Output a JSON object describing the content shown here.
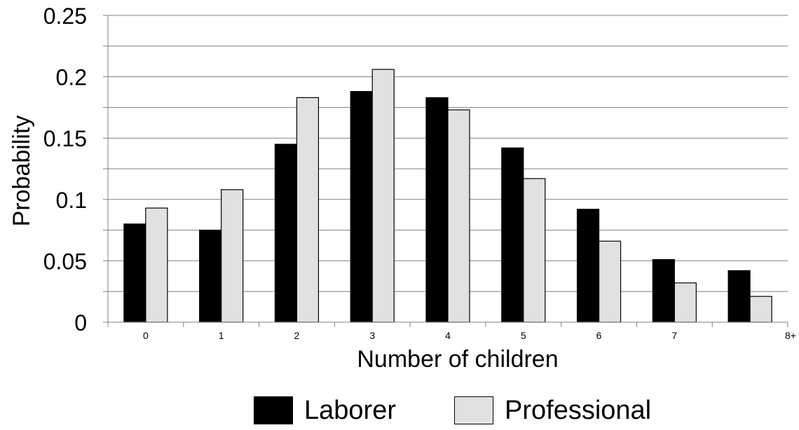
{
  "chart_data": {
    "type": "bar",
    "title": "",
    "xlabel": "Number of children",
    "ylabel": "Probability",
    "categories": [
      "0",
      "1",
      "2",
      "3",
      "4",
      "5",
      "6",
      "7",
      "8+"
    ],
    "y_ticks": [
      "0",
      "0.05",
      "0.1",
      "0.15",
      "0.2",
      "0.25"
    ],
    "ylim": [
      0,
      0.25
    ],
    "grid": true,
    "legend_position": "bottom",
    "series": [
      {
        "name": "Laborer",
        "color": "#000000",
        "values": [
          0.08,
          0.075,
          0.145,
          0.188,
          0.183,
          0.142,
          0.092,
          0.051,
          0.042
        ]
      },
      {
        "name": "Professional",
        "color": "#e1e1e1",
        "values": [
          0.093,
          0.108,
          0.183,
          0.206,
          0.173,
          0.117,
          0.066,
          0.032,
          0.021
        ]
      }
    ]
  }
}
